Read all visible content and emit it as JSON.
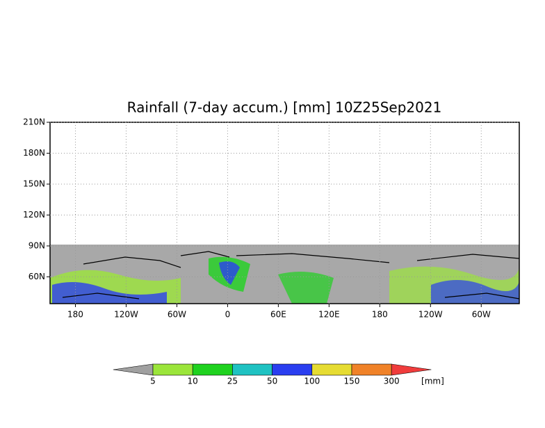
{
  "title": "Rainfall (7-day accum.) [mm] 10Z25Sep2021",
  "map": {
    "xlim": [
      -210,
      345
    ],
    "ylim": [
      34,
      210
    ],
    "xticks": [
      {
        "value": -180,
        "label": "180"
      },
      {
        "value": -120,
        "label": "120W"
      },
      {
        "value": -60,
        "label": "60W"
      },
      0,
      {
        "value": 60,
        "label": "60E"
      },
      {
        "value": 120,
        "label": "120E"
      },
      180,
      {
        "value": 240,
        "label": "120W"
      },
      {
        "value": 300,
        "label": "60W"
      }
    ],
    "yticks": [
      {
        "value": 210,
        "label": "210N"
      },
      {
        "value": 180,
        "label": "180N"
      },
      {
        "value": 150,
        "label": "150N"
      },
      {
        "value": 120,
        "label": "120N"
      },
      {
        "value": 90,
        "label": "90N"
      },
      {
        "value": 60,
        "label": "60N"
      }
    ],
    "grid": true,
    "mask_color": "#a8a8a8"
  },
  "colorbar": {
    "levels": [
      5,
      10,
      25,
      50,
      100,
      150,
      300
    ],
    "colors": [
      "#a0a0a0",
      "#9be53a",
      "#1fd21f",
      "#1fc2c2",
      "#2a3ef0",
      "#e6dc32",
      "#f08228",
      "#f03c3c"
    ],
    "unit": "[mm]"
  }
}
